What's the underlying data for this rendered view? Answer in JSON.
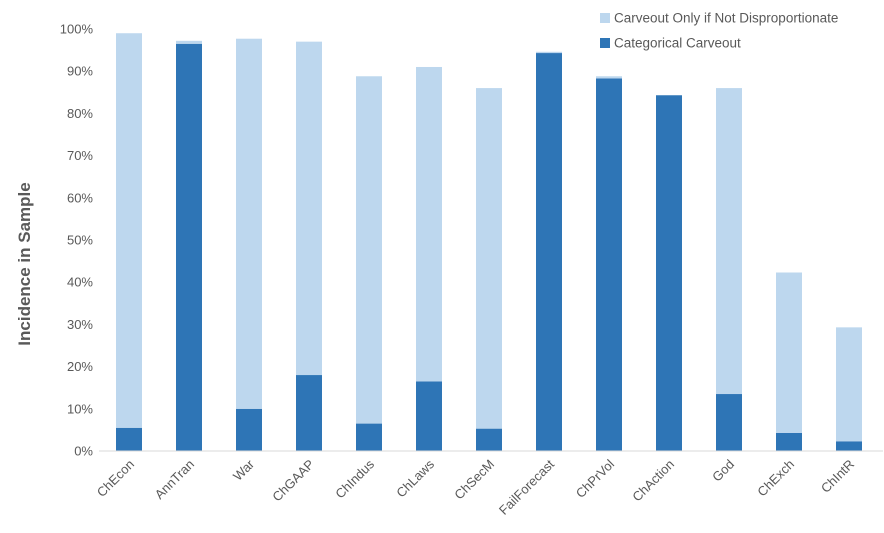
{
  "chart_data": {
    "type": "bar",
    "stacked": true,
    "title": "",
    "xlabel": "",
    "ylabel": "Incidence in Sample",
    "ylim": [
      0,
      100
    ],
    "y_ticks": [
      "0%",
      "10%",
      "20%",
      "30%",
      "40%",
      "50%",
      "60%",
      "70%",
      "80%",
      "90%",
      "100%"
    ],
    "grid": false,
    "legend_position": "top-right",
    "categories": [
      "ChEcon",
      "AnnTran",
      "War",
      "ChGAAP",
      "ChIndus",
      "ChLaws",
      "ChSecM",
      "FailForecast",
      "ChPrVol",
      "ChAction",
      "God",
      "ChExch",
      "ChIntR"
    ],
    "series": [
      {
        "name": "Categorical Carveout",
        "color": "#2e75b6",
        "values": [
          5.5,
          96.5,
          10,
          18,
          6.5,
          16.5,
          5.3,
          94.3,
          88.3,
          84.3,
          13.5,
          4.3,
          2.3
        ]
      },
      {
        "name": "Carveout Only if Not Disproportionate",
        "color": "#bdd7ee",
        "values": [
          93.5,
          0.7,
          87.7,
          79,
          82.3,
          74.5,
          80.7,
          0.3,
          0.5,
          0,
          72.5,
          38,
          27
        ]
      }
    ],
    "legend_order": [
      "Carveout Only if Not Disproportionate",
      "Categorical Carveout"
    ]
  }
}
